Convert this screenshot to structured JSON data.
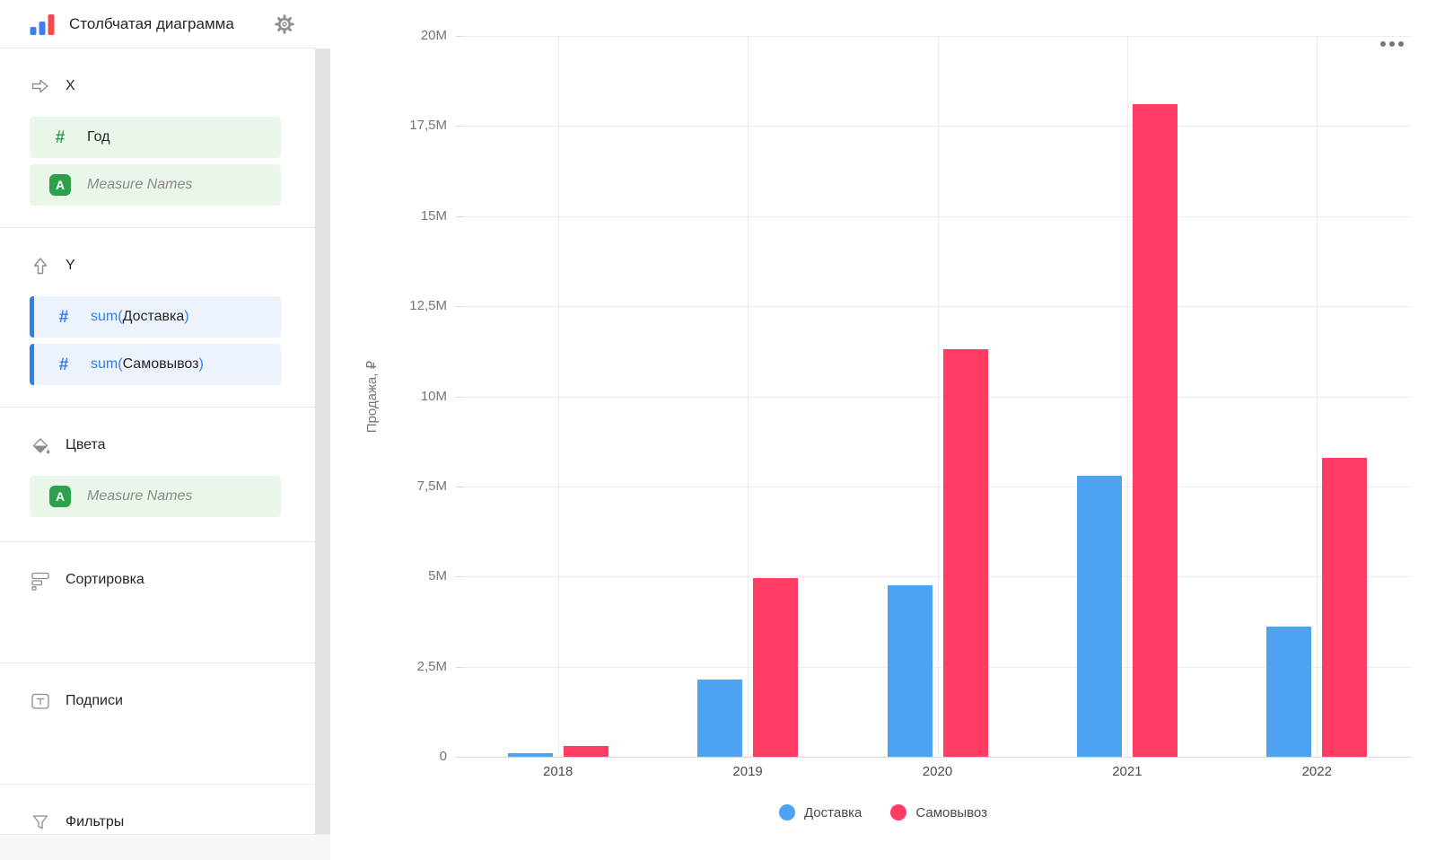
{
  "sidebar": {
    "title": "Столбчатая диаграмма",
    "sections": {
      "x": {
        "label": "X",
        "fields": [
          {
            "icon": "number-field-icon",
            "name": "Год"
          },
          {
            "icon": "text-field-icon",
            "name": "Measure Names"
          }
        ]
      },
      "y": {
        "label": "Y",
        "fields": [
          {
            "icon": "number-field-icon",
            "prefix": "sum(",
            "name": "Доставка",
            "suffix": ")"
          },
          {
            "icon": "number-field-icon",
            "prefix": "sum(",
            "name": "Самовывоз",
            "suffix": ")"
          }
        ]
      },
      "colors": {
        "label": "Цвета",
        "fields": [
          {
            "icon": "text-field-icon",
            "name": "Measure Names"
          }
        ]
      },
      "sorting": {
        "label": "Сортировка"
      },
      "labels": {
        "label": "Подписи"
      },
      "filters": {
        "label": "Фильтры"
      }
    }
  },
  "chart_data": {
    "type": "bar",
    "categories": [
      "2018",
      "2019",
      "2020",
      "2021",
      "2022"
    ],
    "series": [
      {
        "key": "delivery",
        "name": "Доставка",
        "color": "#4DA2F1",
        "values": [
          100000,
          2150000,
          4750000,
          7800000,
          3600000
        ]
      },
      {
        "key": "pickup",
        "name": "Самовывоз",
        "color": "#FF3D64",
        "values": [
          300000,
          4950000,
          11300000,
          18100000,
          8300000
        ]
      }
    ],
    "xlabel": "",
    "ylabel": "Продажа, ₽",
    "ylim": [
      0,
      20000000
    ],
    "yticks": [
      {
        "value": 0,
        "label": "0"
      },
      {
        "value": 2500000,
        "label": "2,5M"
      },
      {
        "value": 5000000,
        "label": "5M"
      },
      {
        "value": 7500000,
        "label": "7,5M"
      },
      {
        "value": 10000000,
        "label": "10M"
      },
      {
        "value": 12500000,
        "label": "12,5M"
      },
      {
        "value": 15000000,
        "label": "15M"
      },
      {
        "value": 17500000,
        "label": "17,5M"
      },
      {
        "value": 20000000,
        "label": "20M"
      }
    ],
    "legend_position": "bottom",
    "grid": true
  },
  "theme": {
    "series_delivery": "#4DA2F1",
    "series_pickup": "#FF3D64",
    "accent_blue": "#2E7FF2",
    "accent_green": "#2EA04C",
    "field_green_bg": "#EBF6EB",
    "field_blue_bg": "#EDF3FC",
    "gridline": "#ECECEC",
    "axis_line": "#D8D8D8",
    "logo_blue": "#3D7FF2",
    "logo_red": "#F6494F"
  }
}
